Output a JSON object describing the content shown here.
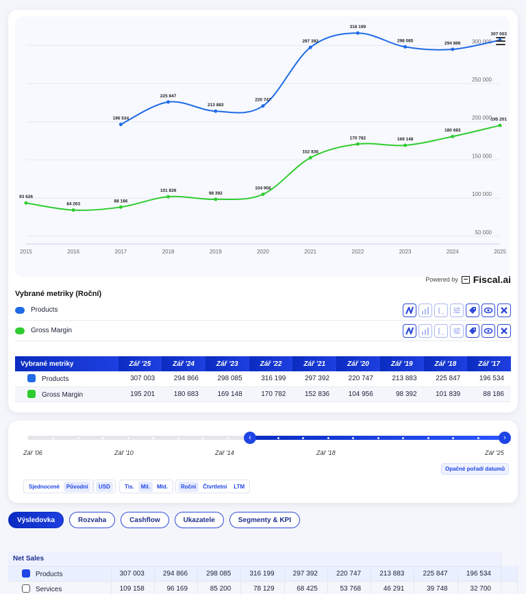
{
  "chart_data": {
    "type": "line",
    "x": [
      "2015",
      "2016",
      "2017",
      "2018",
      "2019",
      "2020",
      "2021",
      "2022",
      "2023",
      "2024",
      "2025"
    ],
    "series": [
      {
        "name": "Products",
        "color": "#1f6ae6",
        "values": [
          null,
          null,
          196534,
          225847,
          213883,
          220747,
          297392,
          316199,
          298085,
          294866,
          307003
        ],
        "labels": [
          "",
          "",
          "196 534",
          "225 847",
          "213 883",
          "220 747",
          "297 392",
          "316 199",
          "298 085",
          "294 866",
          "307 003"
        ]
      },
      {
        "name": "Gross Margin",
        "color": "#2ecc2e",
        "values": [
          93626,
          84263,
          88186,
          101839,
          98392,
          104956,
          152836,
          170782,
          169148,
          180683,
          195201
        ],
        "labels": [
          "93 626",
          "84 263",
          "88 186",
          "101 839",
          "98 392",
          "104 956",
          "152 836",
          "170 782",
          "169 148",
          "180 683",
          "195 201"
        ]
      }
    ],
    "ylim": [
      40000,
      320000
    ],
    "yticks": [
      50000,
      100000,
      150000,
      200000,
      250000,
      300000
    ],
    "ytick_labels": [
      "50 000",
      "100 000",
      "150 000",
      "200 000",
      "250 000",
      "300 000"
    ],
    "grid": true,
    "legend": "below"
  },
  "powered": {
    "text": "Powered by",
    "logo": "Fiscal.ai"
  },
  "metrics": {
    "title": "Vybrané metriky (Roční)",
    "rows": [
      {
        "label": "Products",
        "color": "#1f6ae6"
      },
      {
        "label": "Gross Margin",
        "color": "#2ecc2e"
      }
    ]
  },
  "table": {
    "header": "Vybrané metriky",
    "columns": [
      "Zář '25",
      "Zář '24",
      "Zář '23",
      "Zář '22",
      "Zář '21",
      "Zář '20",
      "Zář '19",
      "Zář '18",
      "Zář '17"
    ],
    "rows": [
      {
        "label": "Products",
        "color": "#1f6ae6",
        "values": [
          "307 003",
          "294 866",
          "298 085",
          "316 199",
          "297 392",
          "220 747",
          "213 883",
          "225 847",
          "196 534"
        ]
      },
      {
        "label": "Gross Margin",
        "color": "#2ecc2e",
        "values": [
          "195 201",
          "180 683",
          "169 148",
          "170 782",
          "152 836",
          "104 956",
          "98 392",
          "101 839",
          "88 186"
        ]
      }
    ]
  },
  "range": {
    "labels": [
      "Zář '06",
      "Zář '10",
      "Zář '14",
      "Zář '18",
      "Zář '25"
    ],
    "order_button": "Opačné pořadí datumů",
    "groups": [
      {
        "options": [
          "Sjednocené",
          "Původní"
        ],
        "active": 1
      },
      {
        "options": [
          "USD"
        ],
        "active": 0
      },
      {
        "options": [
          "Tis.",
          "Mil.",
          "Mld."
        ],
        "active": 1
      },
      {
        "options": [
          "Roční",
          "Čtvrtletní",
          "LTM"
        ],
        "active": 0
      }
    ]
  },
  "tabs": [
    {
      "label": "Výsledovka",
      "active": true
    },
    {
      "label": "Rozvaha",
      "active": false
    },
    {
      "label": "Cashflow",
      "active": false
    },
    {
      "label": "Ukazatele",
      "active": false
    },
    {
      "label": "Segmenty & KPI",
      "active": false
    }
  ],
  "bottom": {
    "section": "Net Sales",
    "rows": [
      {
        "label": "Products",
        "checked": true,
        "values": [
          "307 003",
          "294 866",
          "298 085",
          "316 199",
          "297 392",
          "220 747",
          "213 883",
          "225 847",
          "196 534"
        ]
      },
      {
        "label": "Services",
        "checked": false,
        "values": [
          "109 158",
          "96 169",
          "85 200",
          "78 129",
          "68 425",
          "53 768",
          "46 291",
          "39 748",
          "32 700"
        ]
      }
    ]
  }
}
